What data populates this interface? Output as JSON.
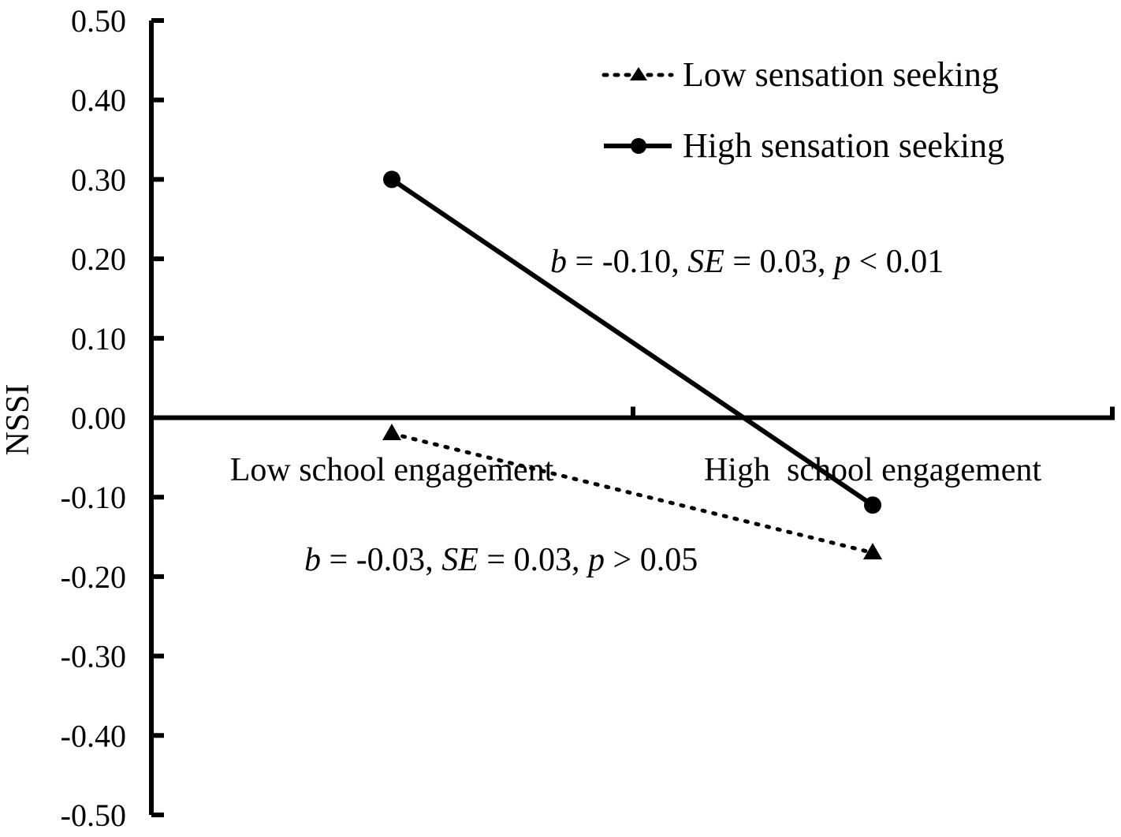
{
  "chart_data": {
    "type": "line",
    "categories": [
      "Low school engagement",
      "High  school engagement"
    ],
    "ylabel": "NSSI",
    "ylim": [
      -0.5,
      0.5
    ],
    "yticks": [
      "0.50",
      "0.40",
      "0.30",
      "0.20",
      "0.10",
      "0.00",
      "-0.10",
      "-0.20",
      "-0.30",
      "-0.40",
      "-0.50"
    ],
    "grid": false,
    "legend_position": "top-right",
    "series": [
      {
        "name": "Low sensation seeking",
        "values": [
          -0.02,
          -0.17
        ],
        "line_style": "dotted",
        "marker": "triangle",
        "color": "#000000"
      },
      {
        "name": "High sensation seeking",
        "values": [
          0.3,
          -0.11
        ],
        "line_style": "solid",
        "marker": "circle",
        "color": "#000000"
      }
    ],
    "annotations": [
      {
        "series": "High sensation seeking",
        "b": "-0.10",
        "SE": "0.03",
        "p_op": "<",
        "p": "0.01"
      },
      {
        "series": "Low sensation seeking",
        "b": "-0.03",
        "SE": "0.03",
        "p_op": ">",
        "p": "0.05"
      }
    ]
  }
}
